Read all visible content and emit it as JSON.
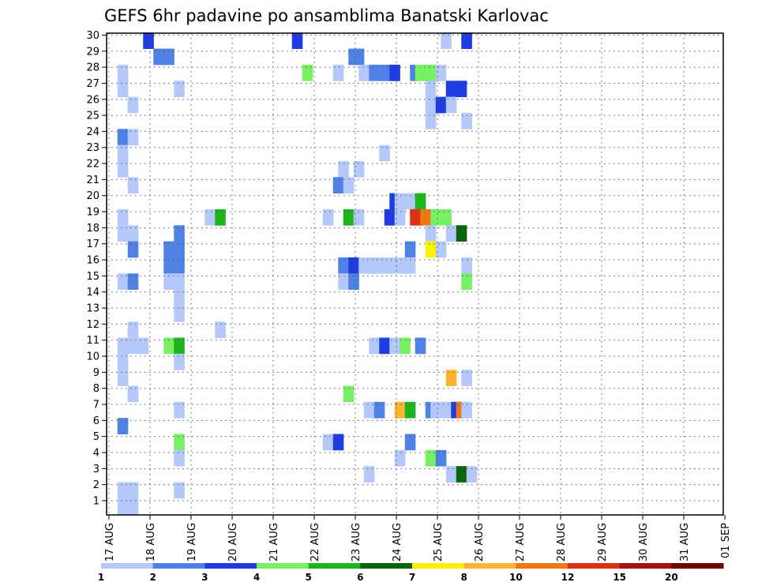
{
  "chart_data": {
    "type": "heatmap",
    "title": "GEFS 6hr padavine po ansamblima Banatski Karlovac",
    "x_labels": [
      "17 AUG",
      "18 AUG",
      "19 AUG",
      "20 AUG",
      "21 AUG",
      "22 AUG",
      "23 AUG",
      "24 AUG",
      "25 AUG",
      "26 AUG",
      "27 AUG",
      "28 AUG",
      "29 AUG",
      "30 AUG",
      "31 AUG",
      "01 SEP"
    ],
    "y_labels": [
      "1",
      "2",
      "3",
      "4",
      "5",
      "6",
      "7",
      "8",
      "9",
      "10",
      "11",
      "12",
      "13",
      "14",
      "15",
      "16",
      "17",
      "18",
      "19",
      "20",
      "21",
      "22",
      "23",
      "24",
      "25",
      "26",
      "27",
      "28",
      "29",
      "30"
    ],
    "ylim": [
      0,
      30
    ],
    "grid": true,
    "legend": {
      "labels": [
        "1",
        "2",
        "3",
        "4",
        "5",
        "6",
        "7",
        "8",
        "10",
        "12",
        "15",
        "20"
      ],
      "colors": [
        "#b4c8fa",
        "#5082e6",
        "#1e3ce1",
        "#78f064",
        "#1eb41e",
        "#0a640a",
        "#faf000",
        "#fab432",
        "#f07814",
        "#dc3214",
        "#a01414",
        "#6e0000"
      ]
    },
    "cells": [
      {
        "t": 1.5,
        "m": 30,
        "c": 3
      },
      {
        "t": 16,
        "m": 30,
        "c": 3
      },
      {
        "t": 30.5,
        "m": 30,
        "c": 1
      },
      {
        "t": 32.5,
        "m": 30,
        "c": 3
      },
      {
        "t": 2.5,
        "m": 29,
        "c": 2
      },
      {
        "t": 3.5,
        "m": 29,
        "c": 2
      },
      {
        "t": 21.5,
        "m": 29,
        "c": 2
      },
      {
        "t": 22,
        "m": 29,
        "c": 2
      },
      {
        "t": -1,
        "m": 28,
        "c": 1
      },
      {
        "t": 17,
        "m": 28,
        "c": 4
      },
      {
        "t": 20,
        "m": 28,
        "c": 1
      },
      {
        "t": 22.5,
        "m": 28,
        "c": 1
      },
      {
        "t": 23.5,
        "m": 28,
        "c": 2
      },
      {
        "t": 24.5,
        "m": 28,
        "c": 2
      },
      {
        "t": 25.5,
        "m": 28,
        "c": 3
      },
      {
        "t": 27.5,
        "m": 28,
        "c": 2
      },
      {
        "t": 28,
        "m": 28,
        "c": 4
      },
      {
        "t": 29,
        "m": 28,
        "c": 4
      },
      {
        "t": 30,
        "m": 28,
        "c": 1
      },
      {
        "t": -1,
        "m": 27,
        "c": 1
      },
      {
        "t": 4.5,
        "m": 27,
        "c": 1
      },
      {
        "t": 29,
        "m": 27,
        "c": 1
      },
      {
        "t": 31,
        "m": 27,
        "c": 3
      },
      {
        "t": 32,
        "m": 27,
        "c": 3
      },
      {
        "t": 0,
        "m": 26,
        "c": 1
      },
      {
        "t": 29,
        "m": 26,
        "c": 1
      },
      {
        "t": 30,
        "m": 26,
        "c": 3
      },
      {
        "t": 31,
        "m": 26,
        "c": 1
      },
      {
        "t": 29,
        "m": 25,
        "c": 1
      },
      {
        "t": 32.5,
        "m": 25,
        "c": 1
      },
      {
        "t": -1,
        "m": 24,
        "c": 2
      },
      {
        "t": 0,
        "m": 24,
        "c": 1
      },
      {
        "t": -1,
        "m": 23,
        "c": 1
      },
      {
        "t": 24.5,
        "m": 23,
        "c": 1
      },
      {
        "t": -1,
        "m": 22,
        "c": 1
      },
      {
        "t": 20.5,
        "m": 22,
        "c": 1
      },
      {
        "t": 22,
        "m": 22,
        "c": 1
      },
      {
        "t": 0,
        "m": 21,
        "c": 1
      },
      {
        "t": 20,
        "m": 21,
        "c": 2
      },
      {
        "t": 21,
        "m": 21,
        "c": 1
      },
      {
        "t": 25.5,
        "m": 20,
        "c": 3
      },
      {
        "t": 26,
        "m": 20,
        "c": 1
      },
      {
        "t": 27,
        "m": 20,
        "c": 1
      },
      {
        "t": 28,
        "m": 20,
        "c": 5
      },
      {
        "t": -1,
        "m": 19,
        "c": 1
      },
      {
        "t": 7.5,
        "m": 19,
        "c": 1
      },
      {
        "t": 8.5,
        "m": 19,
        "c": 5
      },
      {
        "t": 19,
        "m": 19,
        "c": 1
      },
      {
        "t": 21,
        "m": 19,
        "c": 5
      },
      {
        "t": 22,
        "m": 19,
        "c": 1
      },
      {
        "t": 25,
        "m": 19,
        "c": 3
      },
      {
        "t": 26,
        "m": 19,
        "c": 1
      },
      {
        "t": 27.5,
        "m": 19,
        "c": 10
      },
      {
        "t": 28.5,
        "m": 19,
        "c": 9
      },
      {
        "t": 29.5,
        "m": 19,
        "c": 4
      },
      {
        "t": 30.5,
        "m": 19,
        "c": 4
      },
      {
        "t": -1,
        "m": 18,
        "c": 1
      },
      {
        "t": 0,
        "m": 18,
        "c": 1
      },
      {
        "t": 4.5,
        "m": 18,
        "c": 2
      },
      {
        "t": 29,
        "m": 18,
        "c": 1
      },
      {
        "t": 31,
        "m": 18,
        "c": 1
      },
      {
        "t": 32,
        "m": 18,
        "c": 6
      },
      {
        "t": 0,
        "m": 17,
        "c": 2
      },
      {
        "t": 3.5,
        "m": 17,
        "c": 2
      },
      {
        "t": 4.5,
        "m": 17,
        "c": 2
      },
      {
        "t": 27,
        "m": 17,
        "c": 2
      },
      {
        "t": 29,
        "m": 17,
        "c": 7
      },
      {
        "t": 30,
        "m": 17,
        "c": 1
      },
      {
        "t": 3.5,
        "m": 16,
        "c": 2
      },
      {
        "t": 4.5,
        "m": 16,
        "c": 2
      },
      {
        "t": 20.5,
        "m": 16,
        "c": 2
      },
      {
        "t": 21.5,
        "m": 16,
        "c": 3
      },
      {
        "t": 22.5,
        "m": 16,
        "c": 1
      },
      {
        "t": 23.5,
        "m": 16,
        "c": 1
      },
      {
        "t": 24,
        "m": 16,
        "c": 1
      },
      {
        "t": 25,
        "m": 16,
        "c": 1
      },
      {
        "t": 26,
        "m": 16,
        "c": 1
      },
      {
        "t": 27,
        "m": 16,
        "c": 1
      },
      {
        "t": 32.5,
        "m": 16,
        "c": 1
      },
      {
        "t": -1,
        "m": 15,
        "c": 1
      },
      {
        "t": 0,
        "m": 15,
        "c": 2
      },
      {
        "t": 3.5,
        "m": 15,
        "c": 1
      },
      {
        "t": 4.5,
        "m": 15,
        "c": 1
      },
      {
        "t": 20.5,
        "m": 15,
        "c": 1
      },
      {
        "t": 21.5,
        "m": 15,
        "c": 2
      },
      {
        "t": 32.5,
        "m": 15,
        "c": 4
      },
      {
        "t": 4.5,
        "m": 14,
        "c": 1
      },
      {
        "t": 4.5,
        "m": 13,
        "c": 1
      },
      {
        "t": 0,
        "m": 12,
        "c": 1
      },
      {
        "t": 8.5,
        "m": 12,
        "c": 1
      },
      {
        "t": -1,
        "m": 11,
        "c": 1
      },
      {
        "t": 0,
        "m": 11,
        "c": 1
      },
      {
        "t": 1,
        "m": 11,
        "c": 1
      },
      {
        "t": 3.5,
        "m": 11,
        "c": 4
      },
      {
        "t": 4.5,
        "m": 11,
        "c": 5
      },
      {
        "t": 23.5,
        "m": 11,
        "c": 1
      },
      {
        "t": 24.5,
        "m": 11,
        "c": 3
      },
      {
        "t": 25.5,
        "m": 11,
        "c": 1
      },
      {
        "t": 26.5,
        "m": 11,
        "c": 4
      },
      {
        "t": 28,
        "m": 11,
        "c": 2
      },
      {
        "t": -1,
        "m": 10,
        "c": 1
      },
      {
        "t": 4.5,
        "m": 10,
        "c": 1
      },
      {
        "t": -1,
        "m": 9,
        "c": 1
      },
      {
        "t": 31,
        "m": 9,
        "c": 8
      },
      {
        "t": 32.5,
        "m": 9,
        "c": 1
      },
      {
        "t": 0,
        "m": 8,
        "c": 1
      },
      {
        "t": 21,
        "m": 8,
        "c": 4
      },
      {
        "t": 4.5,
        "m": 7,
        "c": 1
      },
      {
        "t": 23,
        "m": 7,
        "c": 1
      },
      {
        "t": 24,
        "m": 7,
        "c": 2
      },
      {
        "t": 26,
        "m": 7,
        "c": 8
      },
      {
        "t": 27,
        "m": 7,
        "c": 5
      },
      {
        "t": 29,
        "m": 7,
        "c": 2
      },
      {
        "t": 30,
        "m": 7,
        "c": 1
      },
      {
        "t": 31.5,
        "m": 7,
        "c": 2
      },
      {
        "t": 30.5,
        "m": 7,
        "c": 1
      },
      {
        "t": 29.5,
        "m": 7,
        "c": 1
      },
      {
        "t": 31.5,
        "m": 7,
        "c": 3
      },
      {
        "t": 32,
        "m": 7,
        "c": 9
      },
      {
        "t": 32.5,
        "m": 7,
        "c": 1
      },
      {
        "t": -1,
        "m": 6,
        "c": 2
      },
      {
        "t": 4.5,
        "m": 5,
        "c": 4
      },
      {
        "t": 19,
        "m": 5,
        "c": 1
      },
      {
        "t": 20,
        "m": 5,
        "c": 3
      },
      {
        "t": 27,
        "m": 5,
        "c": 2
      },
      {
        "t": 4.5,
        "m": 4,
        "c": 1
      },
      {
        "t": 26,
        "m": 4,
        "c": 1
      },
      {
        "t": 29,
        "m": 4,
        "c": 4
      },
      {
        "t": 30,
        "m": 4,
        "c": 2
      },
      {
        "t": 23,
        "m": 3,
        "c": 1
      },
      {
        "t": 31,
        "m": 3,
        "c": 1
      },
      {
        "t": 32,
        "m": 3,
        "c": 6
      },
      {
        "t": 33,
        "m": 3,
        "c": 1
      },
      {
        "t": -1,
        "m": 2,
        "c": 1
      },
      {
        "t": 0,
        "m": 2,
        "c": 1
      },
      {
        "t": 4.5,
        "m": 2,
        "c": 1
      },
      {
        "t": -1,
        "m": 1,
        "c": 1
      },
      {
        "t": 0,
        "m": 1,
        "c": 1
      }
    ]
  }
}
